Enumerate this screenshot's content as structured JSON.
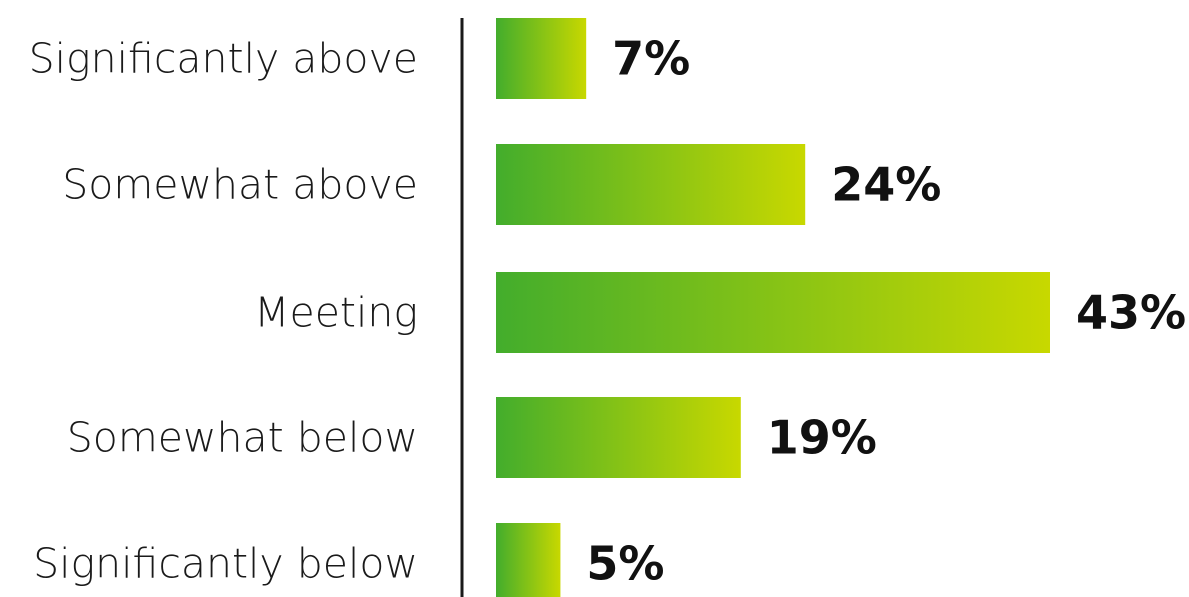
{
  "chart_data": {
    "type": "bar",
    "orientation": "horizontal",
    "categories": [
      "Significantly above",
      "Somewhat above",
      "Meeting",
      "Somewhat below",
      "Significantly below"
    ],
    "values": [
      7,
      24,
      43,
      19,
      5
    ],
    "value_labels": [
      "7%",
      "24%",
      "43%",
      "19%",
      "5%"
    ],
    "title": "",
    "xlabel": "",
    "ylabel": "",
    "xlim": [
      0,
      43
    ],
    "grid": false,
    "legend": "none",
    "colors": {
      "bar_gradient_start": "#43ad2c",
      "bar_gradient_end": "#c8d800",
      "axis": "#1a1a1a",
      "category_text": "#1a1a1a",
      "value_text": "#111111"
    }
  }
}
